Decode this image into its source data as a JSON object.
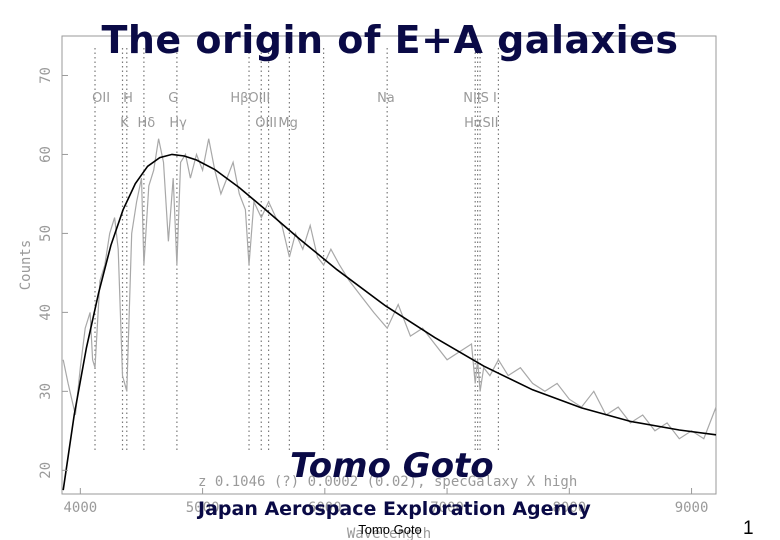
{
  "slide": {
    "title": "The origin of E+A galaxies",
    "author": "Tomo Goto",
    "affiliation": "Japan Aerospace Exploration Agency",
    "footer": "Tomo Goto",
    "page_number": "1"
  },
  "chart_data": {
    "type": "line",
    "ylabel": "Counts",
    "xlabel": "Wavelength",
    "xlim": [
      3850,
      9200
    ],
    "ylim": [
      17,
      75
    ],
    "yticks": [
      "20",
      "30",
      "40",
      "50",
      "60",
      "70"
    ],
    "ytick_values": [
      20,
      30,
      40,
      50,
      60,
      70
    ],
    "xticks": [
      "4000",
      "5000",
      "6000",
      "7000",
      "8000",
      "9000"
    ],
    "xtick_values": [
      4000,
      5000,
      6000,
      7000,
      8000,
      9000
    ],
    "annotation": "z  0.1046 (?)  0.0002 (0.02), specGalaxy  X  high",
    "line_labels_row1": [
      {
        "label": "OII",
        "x": 4170
      },
      {
        "label": "H",
        "x": 4390
      },
      {
        "label": "G",
        "x": 4760
      },
      {
        "label": "HβOIII",
        "x": 5390
      },
      {
        "label": "Na",
        "x": 6500
      },
      {
        "label": "NIIS I",
        "x": 7270
      }
    ],
    "line_labels_row2": [
      {
        "label": "K",
        "x": 4360
      },
      {
        "label": "Hδ",
        "x": 4540
      },
      {
        "label": "Hγ",
        "x": 4800
      },
      {
        "label": "OIII",
        "x": 5520
      },
      {
        "label": "Mg",
        "x": 5700
      },
      {
        "label": "HαSII",
        "x": 7280
      }
    ],
    "lines_x": [
      4120,
      4345,
      4380,
      4520,
      4790,
      5380,
      5480,
      5540,
      5710,
      5990,
      6510,
      7230,
      7250,
      7270,
      7420
    ],
    "model_series": {
      "x": [
        3860,
        3950,
        4050,
        4150,
        4250,
        4350,
        4450,
        4550,
        4650,
        4750,
        4850,
        4950,
        5100,
        5300,
        5500,
        5800,
        6100,
        6500,
        6900,
        7300,
        7700,
        8100,
        8500,
        8900,
        9200
      ],
      "y": [
        17.5,
        27,
        35.5,
        42.5,
        48.5,
        53,
        56.3,
        58.5,
        59.6,
        60,
        59.8,
        59.3,
        58.1,
        55.8,
        53.2,
        49.2,
        45.4,
        40.8,
        36.8,
        33.2,
        30.2,
        27.9,
        26.2,
        25.1,
        24.5
      ]
    },
    "observed_series": {
      "x": [
        3860,
        3900,
        3960,
        4000,
        4040,
        4080,
        4100,
        4120,
        4160,
        4200,
        4240,
        4280,
        4310,
        4345,
        4380,
        4420,
        4460,
        4500,
        4520,
        4560,
        4600,
        4640,
        4680,
        4720,
        4760,
        4790,
        4820,
        4860,
        4900,
        4950,
        5000,
        5050,
        5100,
        5150,
        5200,
        5250,
        5300,
        5350,
        5380,
        5420,
        5480,
        5540,
        5600,
        5650,
        5710,
        5760,
        5820,
        5880,
        5940,
        5990,
        6050,
        6120,
        6200,
        6300,
        6400,
        6510,
        6600,
        6700,
        6800,
        6900,
        7000,
        7100,
        7200,
        7230,
        7250,
        7270,
        7300,
        7350,
        7420,
        7500,
        7600,
        7700,
        7800,
        7900,
        8000,
        8100,
        8200,
        8300,
        8400,
        8500,
        8600,
        8700,
        8800,
        8900,
        9000,
        9100,
        9200
      ],
      "y": [
        34,
        31,
        27,
        33,
        38,
        40,
        34,
        33,
        44,
        46,
        50,
        52,
        48,
        32,
        30,
        50,
        54,
        57,
        46,
        56,
        58,
        62,
        59,
        49,
        57,
        46,
        59,
        60,
        57,
        60,
        58,
        62,
        58,
        55,
        57,
        59,
        55,
        53,
        46,
        54,
        52,
        54,
        52,
        51,
        47,
        50,
        48,
        51,
        47,
        46,
        48,
        46,
        44,
        42,
        40,
        38,
        41,
        37,
        38,
        36,
        34,
        35,
        36,
        31,
        34,
        30,
        33,
        32,
        34,
        32,
        33,
        31,
        30,
        31,
        29,
        28,
        30,
        27,
        28,
        26,
        27,
        25,
        26,
        24,
        25,
        24,
        28
      ]
    },
    "colors": {
      "model": "#000000",
      "observed": "#a8a8a8",
      "axis": "#9a9a9a",
      "line_markers": "#7a7a7a",
      "title_text": "#0a0a46"
    }
  }
}
